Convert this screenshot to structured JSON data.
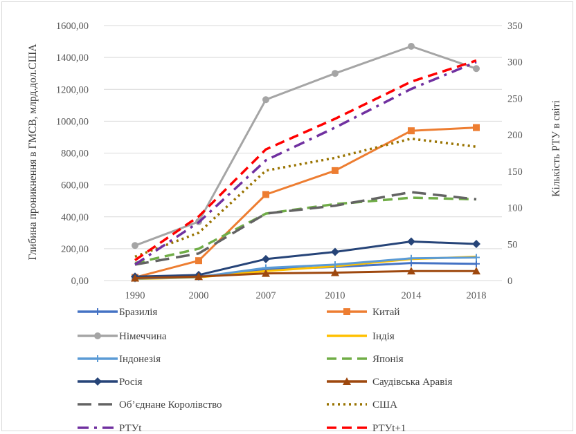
{
  "chart_data": {
    "type": "line",
    "categories": [
      "1990",
      "2000",
      "2007",
      "2010",
      "2014",
      "2018"
    ],
    "ylabel": "Глибина проникнення в ГМСВ, млрд.дол.США",
    "y2label": "Кількість РТУ в світі",
    "ylim": [
      0,
      1600
    ],
    "y2lim": [
      0,
      350
    ],
    "yticks": [
      "0,00",
      "200,00",
      "400,00",
      "600,00",
      "800,00",
      "1000,00",
      "1200,00",
      "1400,00",
      "1600,00"
    ],
    "y2ticks": [
      "0",
      "50",
      "100",
      "150",
      "200",
      "250",
      "300",
      "350"
    ],
    "grid": true,
    "legend_position": "bottom",
    "series": [
      {
        "name": "Бразилія",
        "axis": "left",
        "color": "#4472c4",
        "style": "solid",
        "marker": "plus",
        "values": [
          15,
          25,
          70,
          85,
          110,
          105
        ]
      },
      {
        "name": "Китай",
        "axis": "left",
        "color": "#ed7d31",
        "style": "solid",
        "marker": "square",
        "values": [
          20,
          125,
          540,
          690,
          940,
          960
        ]
      },
      {
        "name": "Німеччина",
        "axis": "left",
        "color": "#a5a5a5",
        "style": "solid",
        "marker": "circle",
        "values": [
          220,
          370,
          1135,
          1300,
          1470,
          1330
        ]
      },
      {
        "name": "Індія",
        "axis": "left",
        "color": "#ffc000",
        "style": "solid",
        "marker": "none",
        "values": [
          10,
          20,
          60,
          90,
          135,
          150
        ]
      },
      {
        "name": "Індонезія",
        "axis": "left",
        "color": "#5b9bd5",
        "style": "solid",
        "marker": "plus",
        "values": [
          12,
          22,
          80,
          100,
          140,
          145
        ]
      },
      {
        "name": "Японія",
        "axis": "left",
        "color": "#70ad47",
        "style": "dash",
        "marker": "none",
        "values": [
          110,
          200,
          420,
          480,
          520,
          510
        ]
      },
      {
        "name": "Росія",
        "axis": "left",
        "color": "#264478",
        "style": "solid",
        "marker": "diamond",
        "values": [
          25,
          35,
          135,
          180,
          245,
          230
        ]
      },
      {
        "name": "Саудівська Аравія",
        "axis": "left",
        "color": "#9e480e",
        "style": "solid",
        "marker": "triangle",
        "values": [
          15,
          25,
          45,
          50,
          60,
          60
        ]
      },
      {
        "name": "Об’єднане Королівство",
        "axis": "left",
        "color": "#636363",
        "style": "longdash",
        "marker": "none",
        "values": [
          100,
          170,
          420,
          470,
          555,
          510
        ]
      },
      {
        "name": "США",
        "axis": "left",
        "color": "#997300",
        "style": "dot",
        "marker": "none",
        "values": [
          150,
          300,
          690,
          770,
          890,
          840
        ]
      },
      {
        "name": "РТУt",
        "axis": "right",
        "color": "#7030a0",
        "style": "dashdot",
        "marker": "none",
        "values": [
          22,
          80,
          165,
          210,
          263,
          300
        ]
      },
      {
        "name": "РТУt+1",
        "axis": "right",
        "color": "#ff0000",
        "style": "dash",
        "marker": "none",
        "values": [
          28,
          88,
          180,
          222,
          273,
          302
        ]
      }
    ]
  }
}
